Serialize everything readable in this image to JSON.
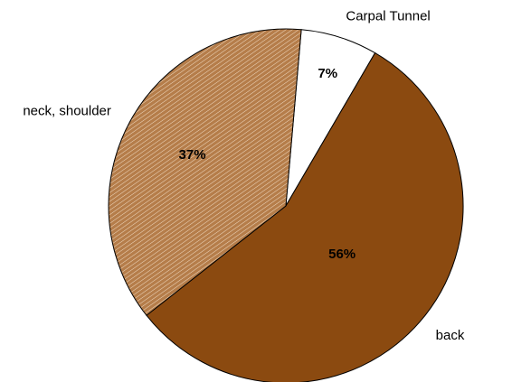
{
  "chart_data": {
    "type": "pie",
    "categories": [
      "Carpal Tunnel",
      "back",
      "neck, shoulder"
    ],
    "values": [
      7,
      56,
      37
    ],
    "value_labels": [
      "7%",
      "56%",
      "37%"
    ],
    "colors": [
      "#ffffff",
      "#8b4a10",
      "#b57d4a"
    ]
  }
}
